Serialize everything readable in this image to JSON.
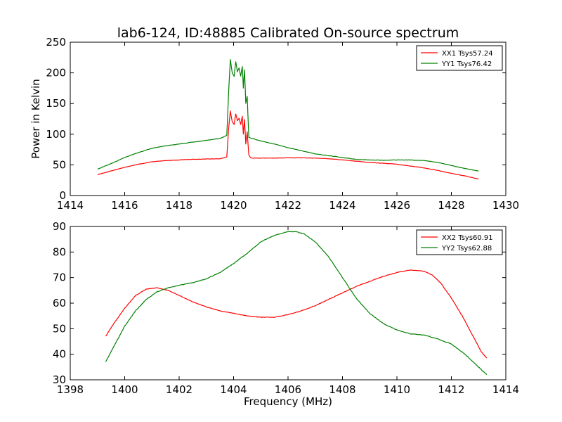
{
  "title": "lab6-124, ID:48885 Calibrated On-source spectrum",
  "chart_data": [
    {
      "type": "line",
      "title": "lab6-124, ID:48885 Calibrated On-source spectrum",
      "xlabel": "",
      "ylabel": "Power in Kelvin",
      "xlim": [
        1414,
        1430
      ],
      "ylim": [
        0,
        250
      ],
      "xticks": [
        1414,
        1416,
        1418,
        1420,
        1422,
        1424,
        1426,
        1428,
        1430
      ],
      "yticks": [
        0,
        50,
        100,
        150,
        200,
        250
      ],
      "legend_position": "top-right",
      "grid": false,
      "series": [
        {
          "name": "XX1 Tsys57.24",
          "color": "#ff0000",
          "x": [
            1415.0,
            1415.5,
            1416.0,
            1416.5,
            1417.0,
            1417.5,
            1418.0,
            1418.5,
            1419.0,
            1419.5,
            1419.75,
            1419.82,
            1419.88,
            1419.95,
            1420.02,
            1420.08,
            1420.14,
            1420.2,
            1420.26,
            1420.32,
            1420.36,
            1420.4,
            1420.45,
            1420.5,
            1420.56,
            1420.62,
            1420.7,
            1421.0,
            1421.5,
            1422.0,
            1422.5,
            1423.0,
            1423.5,
            1424.0,
            1424.5,
            1425.0,
            1425.5,
            1426.0,
            1426.5,
            1427.0,
            1427.5,
            1428.0,
            1428.5,
            1429.0
          ],
          "y": [
            34,
            40,
            46,
            51,
            55,
            57,
            58,
            59,
            59.5,
            60,
            63,
            110,
            138,
            120,
            116,
            133,
            122,
            126,
            116,
            129,
            100,
            124,
            84,
            104,
            66,
            62,
            61,
            61,
            61,
            61.5,
            61.5,
            61,
            60,
            58,
            56,
            54,
            52.5,
            51,
            48,
            45,
            41,
            36,
            32,
            27
          ]
        },
        {
          "name": "YY1 Tsys76.42",
          "color": "#008000",
          "x": [
            1415.0,
            1415.5,
            1416.0,
            1416.5,
            1417.0,
            1417.5,
            1418.0,
            1418.5,
            1419.0,
            1419.5,
            1419.75,
            1419.82,
            1419.88,
            1419.95,
            1420.02,
            1420.08,
            1420.14,
            1420.2,
            1420.26,
            1420.32,
            1420.36,
            1420.4,
            1420.45,
            1420.5,
            1420.56,
            1420.62,
            1420.7,
            1421.0,
            1421.5,
            1422.0,
            1422.5,
            1423.0,
            1423.5,
            1424.0,
            1424.5,
            1425.0,
            1425.5,
            1426.0,
            1426.5,
            1427.0,
            1427.5,
            1428.0,
            1428.5,
            1429.0
          ],
          "y": [
            43,
            52,
            62,
            70,
            77,
            81,
            84,
            87,
            90,
            93,
            98,
            170,
            222,
            200,
            194,
            218,
            202,
            208,
            195,
            210,
            175,
            205,
            150,
            162,
            95,
            94,
            93,
            89,
            84,
            78,
            73,
            68,
            65,
            62,
            59,
            58,
            57.5,
            58,
            58,
            57,
            54,
            49,
            44,
            40
          ]
        }
      ]
    },
    {
      "type": "line",
      "title": "",
      "xlabel": "Frequency (MHz)",
      "ylabel": "",
      "xlim": [
        1398,
        1414
      ],
      "ylim": [
        30,
        90
      ],
      "xticks": [
        1398,
        1400,
        1402,
        1404,
        1406,
        1408,
        1410,
        1412,
        1414
      ],
      "yticks": [
        30,
        40,
        50,
        60,
        70,
        80,
        90
      ],
      "legend_position": "top-right",
      "grid": false,
      "series": [
        {
          "name": "XX2 Tsys60.91",
          "color": "#ff0000",
          "x": [
            1399.3,
            1399.6,
            1400.0,
            1400.4,
            1400.8,
            1401.2,
            1401.6,
            1402.0,
            1402.5,
            1403.0,
            1403.5,
            1404.0,
            1404.5,
            1405.0,
            1405.5,
            1406.0,
            1406.5,
            1407.0,
            1407.5,
            1408.0,
            1408.5,
            1409.0,
            1409.5,
            1410.0,
            1410.5,
            1411.0,
            1411.3,
            1411.6,
            1412.0,
            1412.4,
            1412.8,
            1413.1,
            1413.3
          ],
          "y": [
            47,
            52,
            58,
            63,
            65.5,
            66,
            65,
            63,
            60.5,
            58.5,
            57,
            56,
            55,
            54.5,
            54.5,
            55.5,
            57,
            59,
            61.5,
            64,
            66.5,
            68.5,
            70.5,
            72,
            73,
            72.5,
            71,
            68,
            62,
            55,
            47,
            41,
            38.5
          ]
        },
        {
          "name": "YY2 Tsys62.88",
          "color": "#008000",
          "x": [
            1399.3,
            1399.6,
            1400.0,
            1400.4,
            1400.8,
            1401.2,
            1401.6,
            1402.0,
            1402.5,
            1403.0,
            1403.5,
            1404.0,
            1404.5,
            1405.0,
            1405.5,
            1406.0,
            1406.3,
            1406.6,
            1407.0,
            1407.5,
            1408.0,
            1408.5,
            1409.0,
            1409.5,
            1410.0,
            1410.5,
            1411.0,
            1411.5,
            1412.0,
            1412.5,
            1413.0,
            1413.3
          ],
          "y": [
            37,
            43,
            51,
            57,
            61.5,
            64.5,
            66,
            67,
            68,
            69.5,
            72,
            75.5,
            79.5,
            84,
            86.5,
            88,
            88,
            87,
            84,
            78,
            70,
            62,
            56,
            52,
            49.5,
            48,
            47.5,
            46,
            44,
            40,
            35,
            32
          ]
        }
      ]
    }
  ]
}
